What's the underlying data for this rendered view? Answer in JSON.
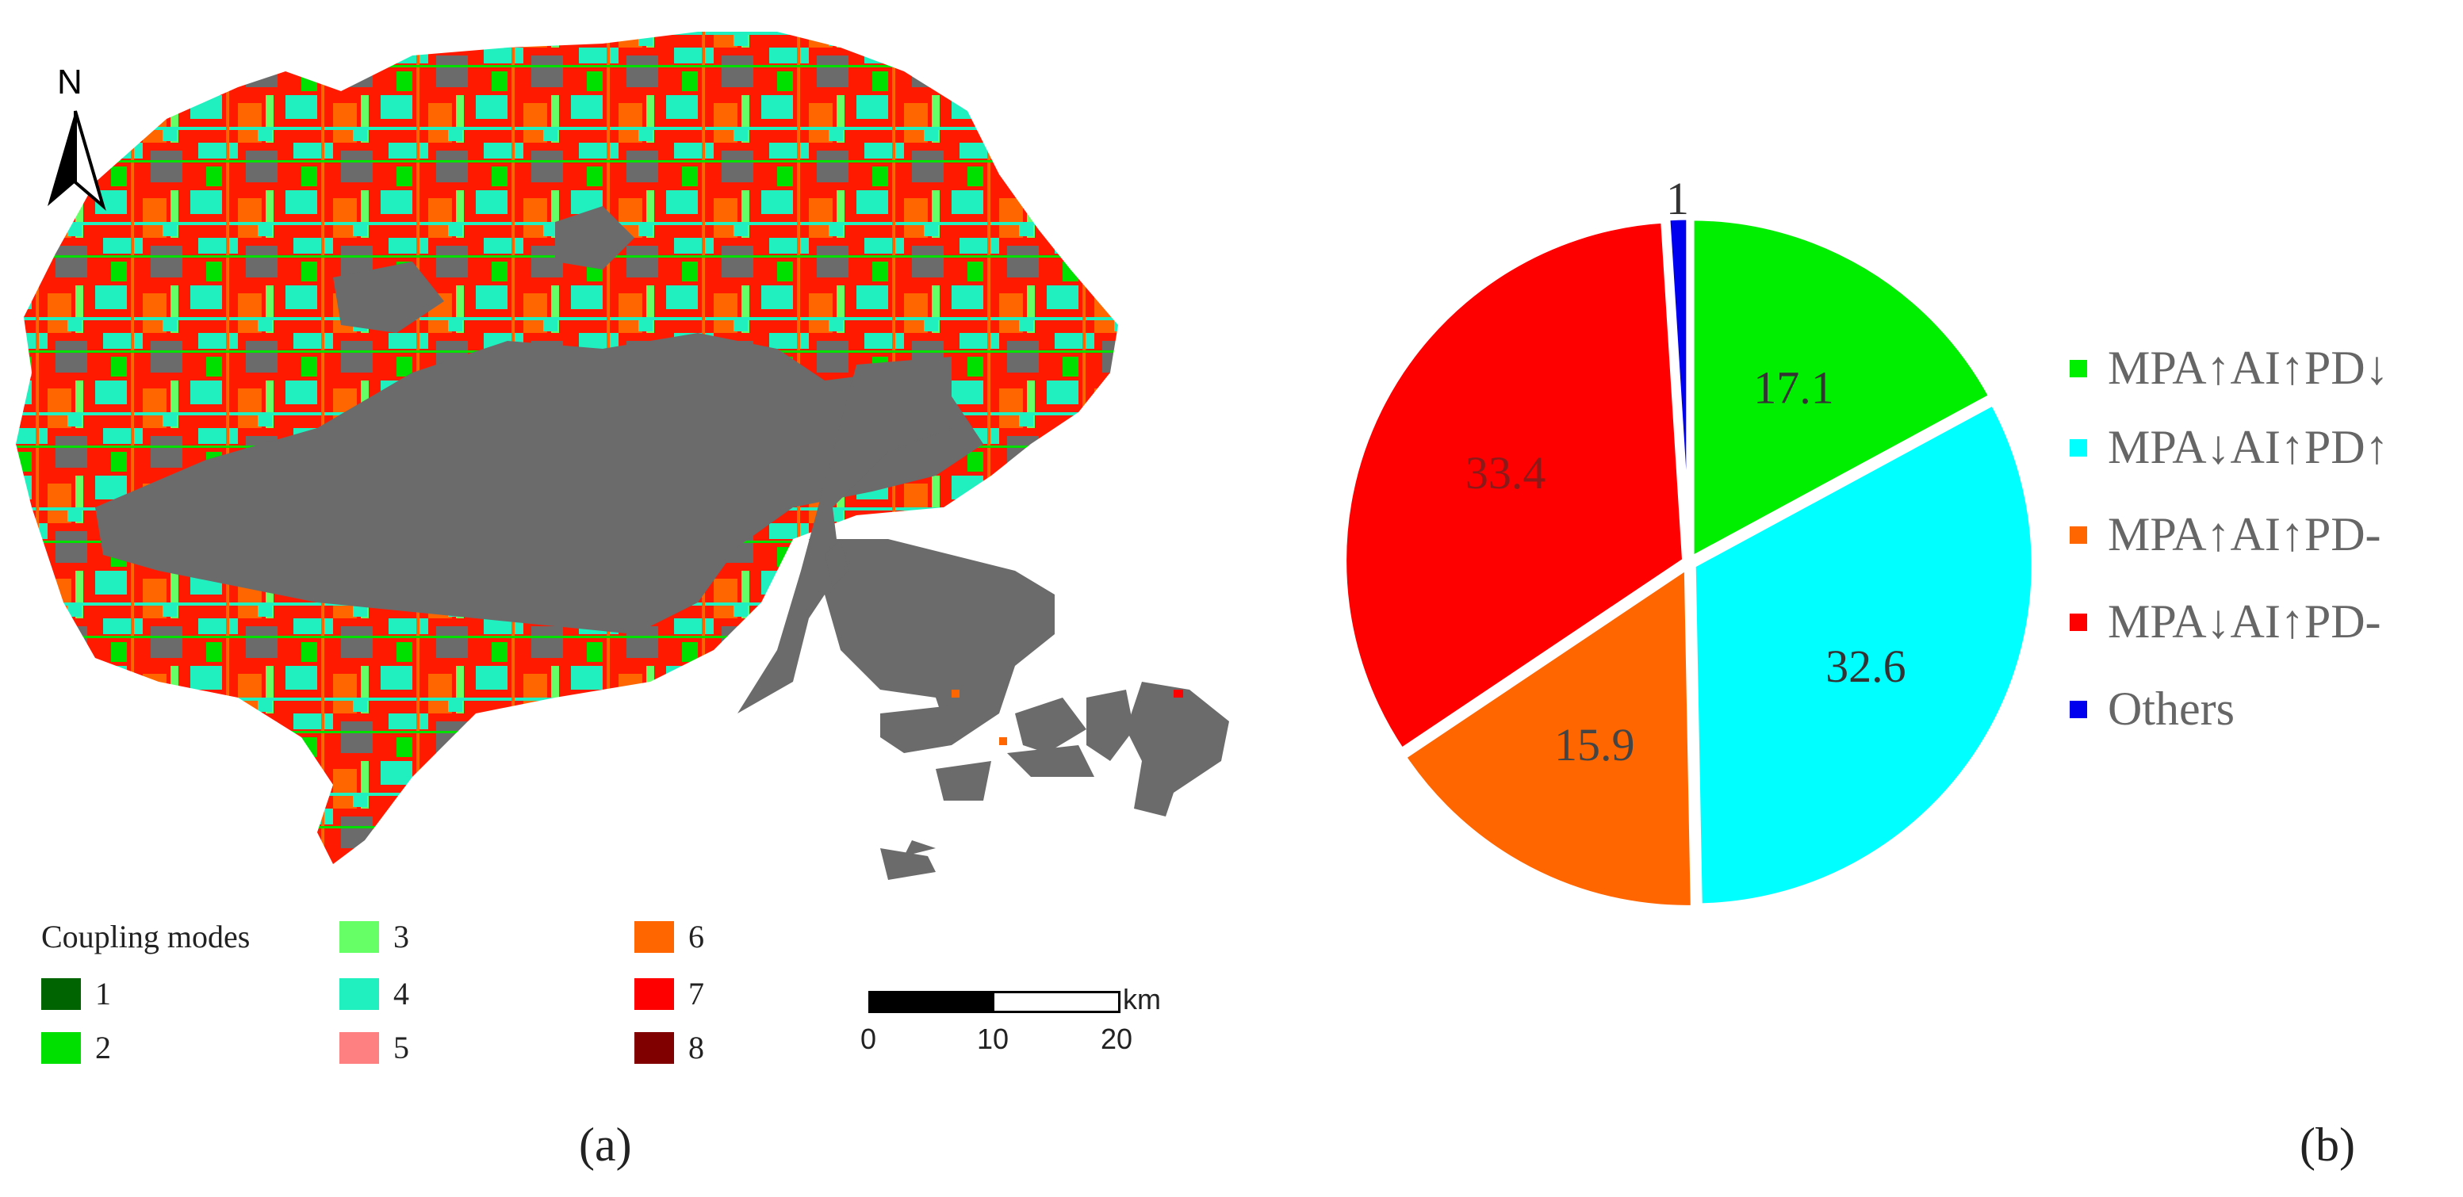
{
  "map": {
    "north_label": "N",
    "legend_title": "Coupling modes",
    "legend_items": [
      {
        "label": "1",
        "color": "#006400"
      },
      {
        "label": "2",
        "color": "#00e000"
      },
      {
        "label": "3",
        "color": "#66ff66"
      },
      {
        "label": "4",
        "color": "#20f0c0"
      },
      {
        "label": "5",
        "color": "#ff8080"
      },
      {
        "label": "6",
        "color": "#ff6600"
      },
      {
        "label": "7",
        "color": "#ff0000"
      },
      {
        "label": "8",
        "color": "#800000"
      }
    ],
    "background_color": "#6b6b6b",
    "scale_bar": {
      "unit": "km",
      "ticks": [
        "0",
        "10",
        "20"
      ]
    },
    "panel_label": "(a)"
  },
  "chart_data": {
    "type": "pie",
    "slices": [
      {
        "label": "MPA↑AI↑PD↓",
        "value": 17.1,
        "display": "17.1",
        "color": "#00ee00"
      },
      {
        "label": "MPA↓AI↑PD↑",
        "value": 32.6,
        "display": "32.6",
        "color": "#00ffff"
      },
      {
        "label": "MPA↑AI↑PD-",
        "value": 15.9,
        "display": "15.9",
        "color": "#ff6600"
      },
      {
        "label": "MPA↓AI↑PD-",
        "value": 33.4,
        "display": "33.4",
        "color": "#ff0000"
      },
      {
        "label": "Others",
        "value": 1,
        "display": "1",
        "color": "#0000ee"
      }
    ],
    "legend_position": "right",
    "panel_label": "(b)"
  }
}
